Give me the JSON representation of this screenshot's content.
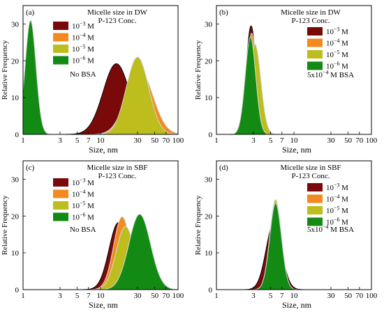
{
  "chart_data": [
    {
      "type": "area",
      "panel_label": "(a)",
      "title": "Micelle size in DW",
      "subtitle": "P-123 Conc.",
      "condition": "No BSA",
      "xlabel": "Size, nm",
      "ylabel": "Relative Frequency",
      "x_scale": "log",
      "xlim": [
        1,
        100
      ],
      "ylim": [
        0,
        35
      ],
      "x_ticks": [
        "1",
        "3",
        "5",
        "7",
        "10",
        "30",
        "50",
        "70",
        "100"
      ],
      "y_ticks": [
        "0",
        "10",
        "20",
        "30"
      ],
      "legend_placement": "top-center",
      "series": [
        {
          "name": "10^-3 M",
          "color": "#7a0a0a",
          "peak_size": 16,
          "peak_frequency": 19.2,
          "log_width": 0.17
        },
        {
          "name": "10^-4 M",
          "color": "#f28a21",
          "peak_size": 32,
          "peak_frequency": 17.5,
          "log_width": 0.17
        },
        {
          "name": "10^-5 M",
          "color": "#bdbd1e",
          "peak_size": 30,
          "peak_frequency": 21.0,
          "log_width": 0.145
        },
        {
          "name": "10^-6 M",
          "color": "#138a13",
          "peak_size": 1.25,
          "peak_frequency": 31.0,
          "log_width": 0.07
        }
      ]
    },
    {
      "type": "area",
      "panel_label": "(b)",
      "title": "Micelle size in DW",
      "subtitle": "P-123 Conc.",
      "condition": "5x10^-4 M BSA",
      "xlabel": "Size, nm",
      "ylabel": "Relative Frequency",
      "x_scale": "log",
      "xlim": [
        1,
        100
      ],
      "ylim": [
        0,
        35
      ],
      "x_ticks": [
        "1",
        "3",
        "5",
        "7",
        "10",
        "30",
        "50",
        "70",
        "100"
      ],
      "y_ticks": [
        "0",
        "10",
        "20",
        "30"
      ],
      "legend_placement": "top-right",
      "series": [
        {
          "name": "10^-3 M",
          "color": "#7a0a0a",
          "peak_size": 2.8,
          "peak_frequency": 29.5,
          "log_width": 0.065
        },
        {
          "name": "10^-4 M",
          "color": "#f28a21",
          "peak_size": 2.85,
          "peak_frequency": 27.5,
          "log_width": 0.066
        },
        {
          "name": "10^-5 M",
          "color": "#bdbd1e",
          "peak_size": 3.15,
          "peak_frequency": 24.5,
          "log_width": 0.075
        },
        {
          "name": "10^-6 M",
          "color": "#138a13",
          "peak_size": 2.75,
          "peak_frequency": 26.5,
          "log_width": 0.068
        }
      ]
    },
    {
      "type": "area",
      "panel_label": "(c)",
      "title": "Micelle size in SBF",
      "subtitle": "P-123 Conc.",
      "condition": "No BSA",
      "xlabel": "Size, nm",
      "ylabel": "Relative Frequency",
      "x_scale": "log",
      "xlim": [
        1,
        100
      ],
      "ylim": [
        0,
        35
      ],
      "x_ticks": [
        "1",
        "3",
        "5",
        "7",
        "10",
        "30",
        "50",
        "70",
        "100"
      ],
      "y_ticks": [
        "0",
        "10",
        "20",
        "30"
      ],
      "legend_placement": "top-center",
      "series": [
        {
          "name": "10^-3 M",
          "color": "#7a0a0a",
          "peak_size": 17,
          "peak_frequency": 18.2,
          "log_width": 0.12
        },
        {
          "name": "10^-4 M",
          "color": "#f28a21",
          "peak_size": 19,
          "peak_frequency": 19.8,
          "log_width": 0.11
        },
        {
          "name": "10^-5 M",
          "color": "#bdbd1e",
          "peak_size": 21,
          "peak_frequency": 17.2,
          "log_width": 0.12
        },
        {
          "name": "10^-6 M",
          "color": "#138a13",
          "peak_size": 32,
          "peak_frequency": 20.5,
          "log_width": 0.14
        }
      ]
    },
    {
      "type": "area",
      "panel_label": "(d)",
      "title": "Micelle size in SBF",
      "subtitle": "P-123 Conc.",
      "condition": "5x10^-4 M BSA",
      "xlabel": "Size, nm",
      "ylabel": "Relative Frequency",
      "x_scale": "log",
      "xlim": [
        1,
        100
      ],
      "ylim": [
        0,
        35
      ],
      "x_ticks": [
        "1",
        "3",
        "5",
        "7",
        "10",
        "30",
        "50",
        "70",
        "100"
      ],
      "y_ticks": [
        "0",
        "10",
        "20",
        "30"
      ],
      "legend_placement": "top-right",
      "series": [
        {
          "name": "10^-3 M",
          "color": "#7a0a0a",
          "peak_size": 5.5,
          "peak_frequency": 18.0,
          "log_width": 0.1
        },
        {
          "name": "10^-4 M",
          "color": "#f28a21",
          "peak_size": 5.8,
          "peak_frequency": 24.0,
          "log_width": 0.075
        },
        {
          "name": "10^-5 M",
          "color": "#bdbd1e",
          "peak_size": 5.8,
          "peak_frequency": 24.5,
          "log_width": 0.075
        },
        {
          "name": "10^-6 M",
          "color": "#138a13",
          "peak_size": 5.8,
          "peak_frequency": 23.5,
          "log_width": 0.076
        }
      ]
    }
  ]
}
